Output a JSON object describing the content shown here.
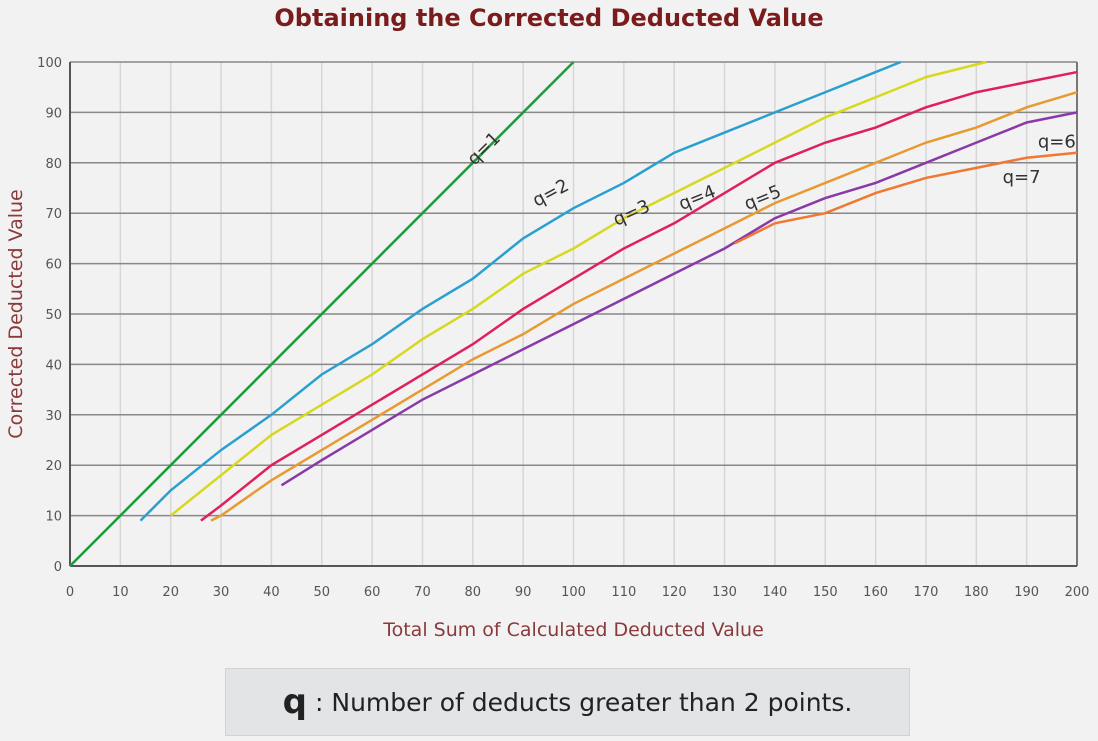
{
  "chart_data": {
    "type": "line",
    "title": "Obtaining the Corrected Deducted Value",
    "xlabel": "Total Sum of Calculated Deducted Value",
    "ylabel": "Corrected Deducted Value",
    "xlim": [
      0,
      200
    ],
    "ylim": [
      0,
      100
    ],
    "xticks": [
      0,
      10,
      20,
      30,
      40,
      50,
      60,
      70,
      80,
      90,
      100,
      110,
      120,
      130,
      140,
      150,
      160,
      170,
      180,
      190,
      200
    ],
    "yticks": [
      0,
      10,
      20,
      30,
      40,
      50,
      60,
      70,
      80,
      90,
      100
    ],
    "grid": true,
    "series": [
      {
        "name": "q=1",
        "color": "#1e9a3a",
        "x": [
          0,
          100
        ],
        "y": [
          0,
          100
        ]
      },
      {
        "name": "q=2",
        "color": "#2aa0d0",
        "x": [
          14,
          20,
          30,
          40,
          50,
          60,
          70,
          80,
          90,
          100,
          110,
          120,
          130,
          140,
          150,
          160,
          165
        ],
        "y": [
          9,
          15,
          23,
          30,
          38,
          44,
          51,
          57,
          65,
          71,
          76,
          82,
          86,
          90,
          94,
          98,
          100
        ]
      },
      {
        "name": "q=3",
        "color": "#d8d820",
        "x": [
          20,
          30,
          40,
          50,
          60,
          70,
          80,
          90,
          100,
          110,
          120,
          130,
          140,
          150,
          160,
          170,
          182
        ],
        "y": [
          10,
          18,
          26,
          32,
          38,
          45,
          51,
          58,
          63,
          69,
          74,
          79,
          84,
          89,
          93,
          97,
          100
        ]
      },
      {
        "name": "q=4",
        "color": "#e0205a",
        "x": [
          26,
          30,
          40,
          50,
          60,
          70,
          80,
          90,
          100,
          110,
          120,
          130,
          140,
          150,
          160,
          170,
          180,
          190,
          200
        ],
        "y": [
          9,
          12,
          20,
          26,
          32,
          38,
          44,
          51,
          57,
          63,
          68,
          74,
          80,
          84,
          87,
          91,
          94,
          96,
          98
        ]
      },
      {
        "name": "q=5",
        "color": "#e89a30",
        "x": [
          28,
          30,
          40,
          50,
          60,
          70,
          80,
          90,
          100,
          110,
          120,
          130,
          140,
          150,
          160,
          170,
          180,
          190,
          200
        ],
        "y": [
          9,
          10,
          17,
          23,
          29,
          35,
          41,
          46,
          52,
          57,
          62,
          67,
          72,
          76,
          80,
          84,
          87,
          91,
          94
        ]
      },
      {
        "name": "q=6",
        "color": "#8a3aa8",
        "x": [
          42,
          50,
          60,
          70,
          80,
          90,
          100,
          110,
          120,
          130,
          140,
          150,
          160,
          170,
          180,
          190,
          200
        ],
        "y": [
          16,
          21,
          27,
          33,
          38,
          43,
          48,
          53,
          58,
          63,
          69,
          73,
          76,
          80,
          84,
          88,
          90
        ]
      },
      {
        "name": "q=7",
        "color": "#f07830",
        "x": [
          132,
          140,
          150,
          160,
          170,
          180,
          190,
          200
        ],
        "y": [
          64,
          68,
          70,
          74,
          77,
          79,
          81,
          82
        ]
      }
    ]
  },
  "note": {
    "symbol": "q",
    "text": ": Number of deducts greater than 2 points."
  }
}
